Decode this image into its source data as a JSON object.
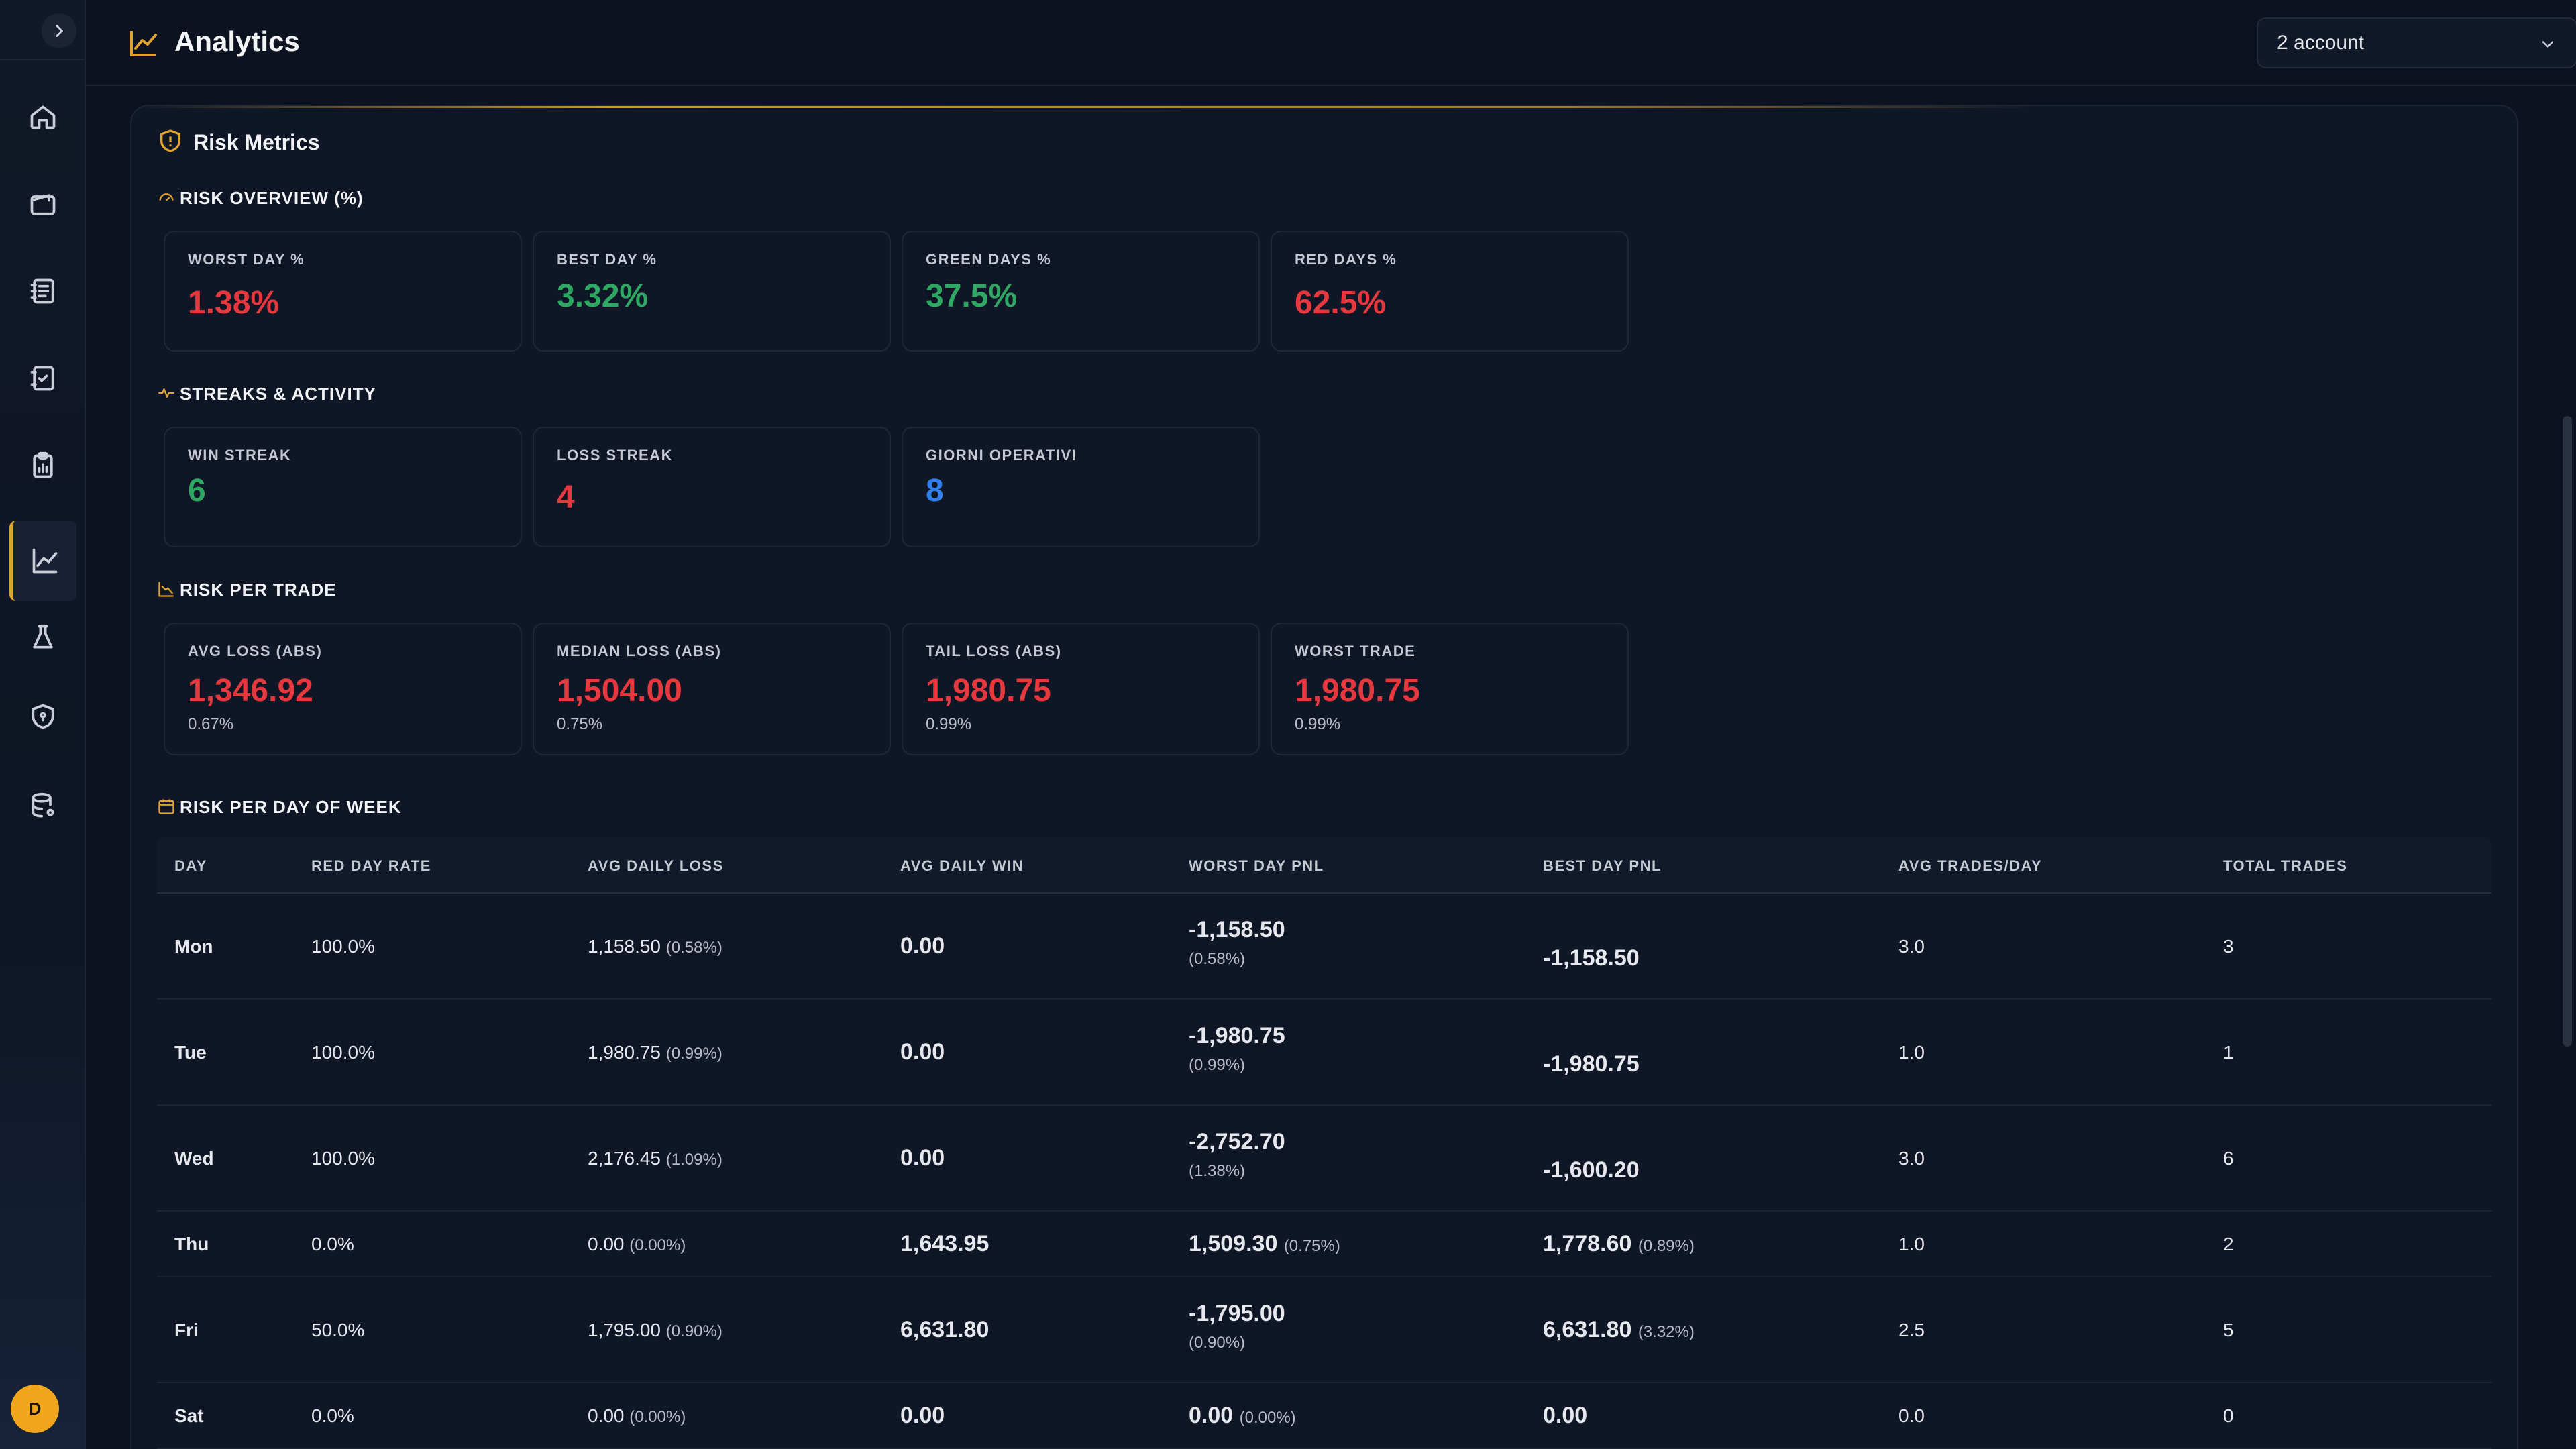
{
  "header": {
    "title": "Analytics",
    "account_select": "2 account"
  },
  "sidebar": {
    "items": [
      "home",
      "wallet",
      "journal",
      "checklist",
      "reports",
      "analytics",
      "lab",
      "security",
      "database"
    ],
    "active": "analytics",
    "avatar_initial": "D"
  },
  "risk": {
    "title": "Risk Metrics",
    "overview": {
      "title": "RISK OVERVIEW (%)",
      "cards": [
        {
          "label": "WORST DAY %",
          "value": "1.38%",
          "tone": "red"
        },
        {
          "label": "BEST DAY %",
          "value": "3.32%",
          "tone": "green"
        },
        {
          "label": "GREEN DAYS %",
          "value": "37.5%",
          "tone": "green"
        },
        {
          "label": "RED DAYS %",
          "value": "62.5%",
          "tone": "red"
        }
      ]
    },
    "streaks": {
      "title": "STREAKS & ACTIVITY",
      "cards": [
        {
          "label": "WIN STREAK",
          "value": "6",
          "tone": "green"
        },
        {
          "label": "LOSS STREAK",
          "value": "4",
          "tone": "red"
        },
        {
          "label": "GIORNI OPERATIVI",
          "value": "8",
          "tone": "blue"
        }
      ]
    },
    "per_trade": {
      "title": "RISK PER TRADE",
      "cards": [
        {
          "label": "AVG LOSS (ABS)",
          "value": "1,346.92",
          "sub": "0.67%",
          "tone": "red"
        },
        {
          "label": "MEDIAN LOSS (ABS)",
          "value": "1,504.00",
          "sub": "0.75%",
          "tone": "red"
        },
        {
          "label": "TAIL LOSS (ABS)",
          "value": "1,980.75",
          "sub": "0.99%",
          "tone": "red"
        },
        {
          "label": "WORST TRADE",
          "value": "1,980.75",
          "sub": "0.99%",
          "tone": "red"
        }
      ]
    },
    "per_day": {
      "title": "RISK PER DAY OF WEEK",
      "columns": [
        "DAY",
        "RED DAY RATE",
        "AVG DAILY LOSS",
        "AVG DAILY WIN",
        "WORST DAY PNL",
        "BEST DAY PNL",
        "AVG TRADES/DAY",
        "TOTAL TRADES"
      ],
      "rows": [
        {
          "day": "Mon",
          "red_rate": "100.0%",
          "avg_loss": "1,158.50",
          "avg_loss_pct": "(0.58%)",
          "avg_win": "0.00",
          "worst": "-1,158.50",
          "worst_pct": "(0.58%)",
          "worst_tone": "red",
          "best": "-1,158.50",
          "best_pct": "",
          "best_tone": "red",
          "avg_trades": "3.0",
          "total": "3"
        },
        {
          "day": "Tue",
          "red_rate": "100.0%",
          "avg_loss": "1,980.75",
          "avg_loss_pct": "(0.99%)",
          "avg_win": "0.00",
          "worst": "-1,980.75",
          "worst_pct": "(0.99%)",
          "worst_tone": "red",
          "best": "-1,980.75",
          "best_pct": "",
          "best_tone": "red",
          "avg_trades": "1.0",
          "total": "1"
        },
        {
          "day": "Wed",
          "red_rate": "100.0%",
          "avg_loss": "2,176.45",
          "avg_loss_pct": "(1.09%)",
          "avg_win": "0.00",
          "worst": "-2,752.70",
          "worst_pct": "(1.38%)",
          "worst_tone": "red",
          "best": "-1,600.20",
          "best_pct": "",
          "best_tone": "red",
          "avg_trades": "3.0",
          "total": "6"
        },
        {
          "day": "Thu",
          "red_rate": "0.0%",
          "avg_loss": "0.00",
          "avg_loss_pct": "(0.00%)",
          "avg_win": "1,643.95",
          "worst": "1,509.30",
          "worst_pct": "(0.75%)",
          "worst_tone": "green",
          "best": "1,778.60",
          "best_pct": "(0.89%)",
          "best_tone": "green",
          "avg_trades": "1.0",
          "total": "2"
        },
        {
          "day": "Fri",
          "red_rate": "50.0%",
          "avg_loss": "1,795.00",
          "avg_loss_pct": "(0.90%)",
          "avg_win": "6,631.80",
          "worst": "-1,795.00",
          "worst_pct": "(0.90%)",
          "worst_tone": "red",
          "best": "6,631.80",
          "best_pct": "(3.32%)",
          "best_tone": "green",
          "avg_trades": "2.5",
          "total": "5"
        },
        {
          "day": "Sat",
          "red_rate": "0.0%",
          "avg_loss": "0.00",
          "avg_loss_pct": "(0.00%)",
          "avg_win": "0.00",
          "worst": "0.00",
          "worst_pct": "(0.00%)",
          "worst_tone": "green",
          "best": "0.00",
          "best_pct": "",
          "best_tone": "green",
          "avg_trades": "0.0",
          "total": "0"
        }
      ]
    }
  },
  "colors": {
    "accent": "#e0a230",
    "red": "#e5393f",
    "green": "#2ea862",
    "blue": "#2f80ed",
    "bg": "#0c1220"
  }
}
